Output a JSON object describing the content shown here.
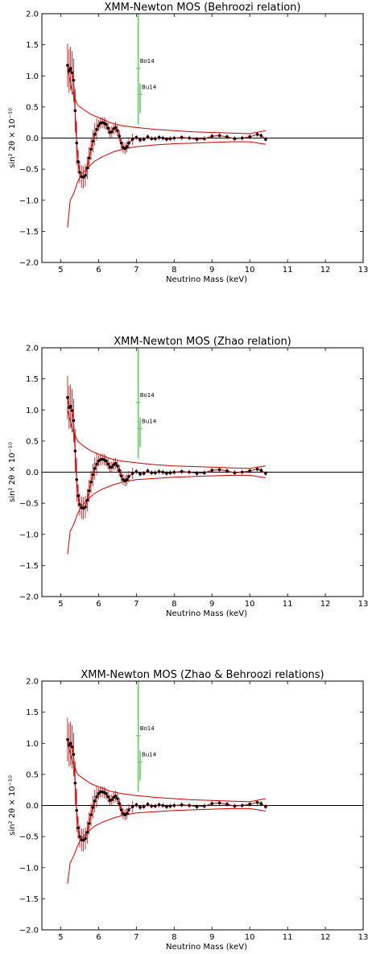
{
  "chart_data": [
    {
      "type": "line",
      "title": "XMM-Newton MOS (Behroozi relation)",
      "xlabel": "Neutrino Mass (keV)",
      "ylabel": "sin² 2θ  × 10⁻¹⁰",
      "xlim": [
        4.5,
        13
      ],
      "ylim": [
        -2.0,
        2.0
      ],
      "xticks": [
        5,
        6,
        7,
        8,
        9,
        10,
        11,
        12,
        13
      ],
      "yticks": [
        -2.0,
        -1.5,
        -1.0,
        -0.5,
        0.0,
        0.5,
        1.0,
        1.5,
        2.0
      ],
      "ytick_labels": [
        "−2.0",
        "−1.5",
        "−1.0",
        "−0.5",
        "0.0",
        "0.5",
        "1.0",
        "1.5",
        "2.0"
      ],
      "series": [
        {
          "role": "best-fit",
          "x": [
            5.18,
            5.22,
            5.26,
            5.3,
            5.34,
            5.38,
            5.42,
            5.46,
            5.5,
            5.55,
            5.6,
            5.65,
            5.7,
            5.75,
            5.8,
            5.85,
            5.9,
            5.95,
            6.0,
            6.05,
            6.1,
            6.15,
            6.2,
            6.25,
            6.3,
            6.35,
            6.4,
            6.45,
            6.5,
            6.55,
            6.6,
            6.65,
            6.7,
            6.75,
            6.8,
            6.9,
            7.0,
            7.1,
            7.2,
            7.3,
            7.4,
            7.5,
            7.6,
            7.7,
            7.8,
            7.9,
            8.0,
            8.2,
            8.4,
            8.6,
            8.8,
            9.0,
            9.2,
            9.4,
            9.6,
            9.8,
            10.0,
            10.2,
            10.3,
            10.42
          ],
          "y": [
            1.17,
            1.08,
            1.12,
            1.05,
            0.93,
            0.44,
            -0.08,
            -0.38,
            -0.55,
            -0.62,
            -0.63,
            -0.6,
            -0.48,
            -0.32,
            -0.18,
            -0.05,
            0.06,
            0.14,
            0.2,
            0.24,
            0.25,
            0.24,
            0.22,
            0.16,
            0.09,
            0.1,
            0.15,
            0.17,
            0.12,
            0.03,
            -0.08,
            -0.15,
            -0.17,
            -0.14,
            -0.08,
            -0.02,
            0.01,
            -0.03,
            -0.02,
            0.02,
            -0.01,
            -0.01,
            0.01,
            0.0,
            -0.02,
            -0.01,
            0.0,
            0.01,
            0.0,
            -0.02,
            -0.01,
            0.03,
            0.04,
            0.02,
            -0.01,
            0.0,
            0.02,
            0.06,
            0.04,
            -0.02
          ]
        },
        {
          "role": "upper-limit",
          "x": [
            5.18,
            5.3,
            5.45,
            5.6,
            5.8,
            6.0,
            6.3,
            6.6,
            7.0,
            7.5,
            8.0,
            8.5,
            9.0,
            9.5,
            10.0,
            10.42
          ],
          "y": [
            1.12,
            0.75,
            0.53,
            0.46,
            0.38,
            0.33,
            0.25,
            0.2,
            0.17,
            0.14,
            0.12,
            0.1,
            0.09,
            0.08,
            0.07,
            0.12
          ]
        },
        {
          "role": "lower-limit",
          "x": [
            5.18,
            5.25,
            5.35,
            5.45,
            5.55,
            5.7,
            5.9,
            6.1,
            6.4,
            6.7,
            7.0,
            7.5,
            8.0,
            8.5,
            9.0,
            9.5,
            10.0,
            10.42
          ],
          "y": [
            -1.44,
            -1.0,
            -0.88,
            -0.7,
            -0.58,
            -0.48,
            -0.37,
            -0.3,
            -0.22,
            -0.17,
            -0.14,
            -0.11,
            -0.09,
            -0.08,
            -0.07,
            -0.06,
            -0.06,
            -0.1
          ]
        }
      ],
      "annotations": [
        {
          "label": "Bo14",
          "x": 7.05,
          "y": 1.12,
          "ylow": 0.22,
          "yhigh": 2.0
        },
        {
          "label": "Bu14",
          "x": 7.1,
          "y": 0.7,
          "ylow": 0.4,
          "yhigh": 0.88
        }
      ]
    },
    {
      "type": "line",
      "title": "XMM-Newton MOS (Zhao relation)",
      "xlabel": "Neutrino Mass (keV)",
      "ylabel": "sin² 2θ  × 10⁻¹⁰",
      "xlim": [
        4.5,
        13
      ],
      "ylim": [
        -2.0,
        2.0
      ],
      "xticks": [
        5,
        6,
        7,
        8,
        9,
        10,
        11,
        12,
        13
      ],
      "yticks": [
        -2.0,
        -1.5,
        -1.0,
        -0.5,
        0.0,
        0.5,
        1.0,
        1.5,
        2.0
      ],
      "ytick_labels": [
        "−2.0",
        "−1.5",
        "−1.0",
        "−0.5",
        "0.0",
        "0.5",
        "1.0",
        "1.5",
        "2.0"
      ],
      "series": [
        {
          "role": "best-fit",
          "x": [
            5.18,
            5.22,
            5.26,
            5.3,
            5.34,
            5.38,
            5.42,
            5.46,
            5.5,
            5.55,
            5.6,
            5.65,
            5.7,
            5.75,
            5.8,
            5.85,
            5.9,
            5.95,
            6.0,
            6.05,
            6.1,
            6.15,
            6.2,
            6.25,
            6.3,
            6.35,
            6.4,
            6.45,
            6.5,
            6.55,
            6.6,
            6.65,
            6.7,
            6.75,
            6.8,
            6.9,
            7.0,
            7.1,
            7.2,
            7.3,
            7.4,
            7.5,
            7.6,
            7.7,
            7.8,
            7.9,
            8.0,
            8.2,
            8.4,
            8.6,
            8.8,
            9.0,
            9.2,
            9.4,
            9.6,
            9.8,
            10.0,
            10.2,
            10.3,
            10.42
          ],
          "y": [
            1.2,
            1.04,
            1.06,
            0.99,
            0.83,
            0.34,
            -0.12,
            -0.38,
            -0.52,
            -0.57,
            -0.58,
            -0.56,
            -0.45,
            -0.3,
            -0.16,
            -0.04,
            0.06,
            0.13,
            0.18,
            0.2,
            0.21,
            0.2,
            0.18,
            0.13,
            0.08,
            0.08,
            0.12,
            0.14,
            0.1,
            0.03,
            -0.06,
            -0.12,
            -0.14,
            -0.12,
            -0.07,
            -0.02,
            0.01,
            -0.03,
            -0.02,
            0.02,
            -0.01,
            -0.01,
            0.01,
            0.0,
            -0.02,
            -0.01,
            0.0,
            0.01,
            0.0,
            -0.02,
            -0.01,
            0.03,
            0.04,
            0.02,
            -0.01,
            0.0,
            0.02,
            0.05,
            0.03,
            -0.02
          ]
        },
        {
          "role": "upper-limit",
          "x": [
            5.18,
            5.3,
            5.45,
            5.6,
            5.8,
            6.0,
            6.3,
            6.6,
            7.0,
            7.5,
            8.0,
            8.5,
            9.0,
            9.5,
            10.0,
            10.42
          ],
          "y": [
            1.0,
            0.7,
            0.5,
            0.42,
            0.34,
            0.29,
            0.22,
            0.18,
            0.15,
            0.12,
            0.1,
            0.09,
            0.08,
            0.07,
            0.06,
            0.1
          ]
        },
        {
          "role": "lower-limit",
          "x": [
            5.18,
            5.25,
            5.35,
            5.45,
            5.55,
            5.7,
            5.9,
            6.1,
            6.4,
            6.7,
            7.0,
            7.5,
            8.0,
            8.5,
            9.0,
            9.5,
            10.0,
            10.42
          ],
          "y": [
            -1.32,
            -0.95,
            -0.83,
            -0.66,
            -0.55,
            -0.44,
            -0.34,
            -0.27,
            -0.2,
            -0.15,
            -0.12,
            -0.1,
            -0.08,
            -0.07,
            -0.06,
            -0.05,
            -0.05,
            -0.09
          ]
        }
      ],
      "annotations": [
        {
          "label": "Bo14",
          "x": 7.05,
          "y": 1.12,
          "ylow": 0.22,
          "yhigh": 2.0
        },
        {
          "label": "Bu14",
          "x": 7.1,
          "y": 0.7,
          "ylow": 0.4,
          "yhigh": 0.88
        }
      ]
    },
    {
      "type": "line",
      "title": "XMM-Newton MOS (Zhao & Behroozi relations)",
      "xlabel": "Neutrino Mass (keV)",
      "ylabel": "sin² 2θ  × 10⁻¹⁰",
      "xlim": [
        4.5,
        13
      ],
      "ylim": [
        -2.0,
        2.0
      ],
      "xticks": [
        5,
        6,
        7,
        8,
        9,
        10,
        11,
        12,
        13
      ],
      "yticks": [
        -2.0,
        -1.5,
        -1.0,
        -0.5,
        0.0,
        0.5,
        1.0,
        1.5,
        2.0
      ],
      "ytick_labels": [
        "−2.0",
        "−1.5",
        "−1.0",
        "−0.5",
        "0.0",
        "0.5",
        "1.0",
        "1.5",
        "2.0"
      ],
      "series": [
        {
          "role": "best-fit",
          "x": [
            5.18,
            5.22,
            5.26,
            5.3,
            5.34,
            5.38,
            5.42,
            5.46,
            5.5,
            5.55,
            5.6,
            5.65,
            5.7,
            5.75,
            5.8,
            5.85,
            5.9,
            5.95,
            6.0,
            6.05,
            6.1,
            6.15,
            6.2,
            6.25,
            6.3,
            6.35,
            6.4,
            6.45,
            6.5,
            6.55,
            6.6,
            6.65,
            6.7,
            6.75,
            6.8,
            6.9,
            7.0,
            7.1,
            7.2,
            7.3,
            7.4,
            7.5,
            7.6,
            7.7,
            7.8,
            7.9,
            8.0,
            8.2,
            8.4,
            8.6,
            8.8,
            9.0,
            9.2,
            9.4,
            9.6,
            9.8,
            10.0,
            10.2,
            10.3,
            10.42
          ],
          "y": [
            1.06,
            0.97,
            1.0,
            0.94,
            0.82,
            0.36,
            -0.08,
            -0.36,
            -0.5,
            -0.55,
            -0.56,
            -0.53,
            -0.43,
            -0.29,
            -0.15,
            -0.03,
            0.07,
            0.14,
            0.19,
            0.22,
            0.22,
            0.21,
            0.19,
            0.14,
            0.08,
            0.09,
            0.13,
            0.15,
            0.11,
            0.03,
            -0.07,
            -0.13,
            -0.15,
            -0.13,
            -0.07,
            -0.02,
            0.01,
            -0.03,
            -0.02,
            0.02,
            -0.01,
            -0.01,
            0.01,
            0.0,
            -0.02,
            -0.01,
            0.0,
            0.01,
            0.0,
            -0.02,
            -0.01,
            0.03,
            0.04,
            0.02,
            -0.01,
            0.0,
            0.02,
            0.05,
            0.03,
            -0.02
          ]
        },
        {
          "role": "upper-limit",
          "x": [
            5.18,
            5.3,
            5.45,
            5.6,
            5.8,
            6.0,
            6.3,
            6.6,
            7.0,
            7.5,
            8.0,
            8.5,
            9.0,
            9.5,
            10.0,
            10.42
          ],
          "y": [
            1.02,
            0.72,
            0.5,
            0.43,
            0.35,
            0.3,
            0.23,
            0.19,
            0.16,
            0.13,
            0.11,
            0.09,
            0.08,
            0.07,
            0.06,
            0.11
          ]
        },
        {
          "role": "lower-limit",
          "x": [
            5.18,
            5.25,
            5.35,
            5.45,
            5.55,
            5.7,
            5.9,
            6.1,
            6.4,
            6.7,
            7.0,
            7.5,
            8.0,
            8.5,
            9.0,
            9.5,
            10.0,
            10.42
          ],
          "y": [
            -1.26,
            -0.92,
            -0.8,
            -0.64,
            -0.53,
            -0.43,
            -0.33,
            -0.27,
            -0.2,
            -0.15,
            -0.12,
            -0.1,
            -0.08,
            -0.07,
            -0.06,
            -0.05,
            -0.05,
            -0.09
          ]
        }
      ],
      "annotations": [
        {
          "label": "Bo14",
          "x": 7.05,
          "y": 1.12,
          "ylow": 0.22,
          "yhigh": 2.0
        },
        {
          "label": "Bu14",
          "x": 7.1,
          "y": 0.7,
          "ylow": 0.4,
          "yhigh": 0.88
        }
      ]
    }
  ],
  "colors": {
    "fit": "#cc0000",
    "limits": "#cc0000",
    "markers": "#000000",
    "annotations": "#66cc66",
    "axes": "#000000"
  }
}
